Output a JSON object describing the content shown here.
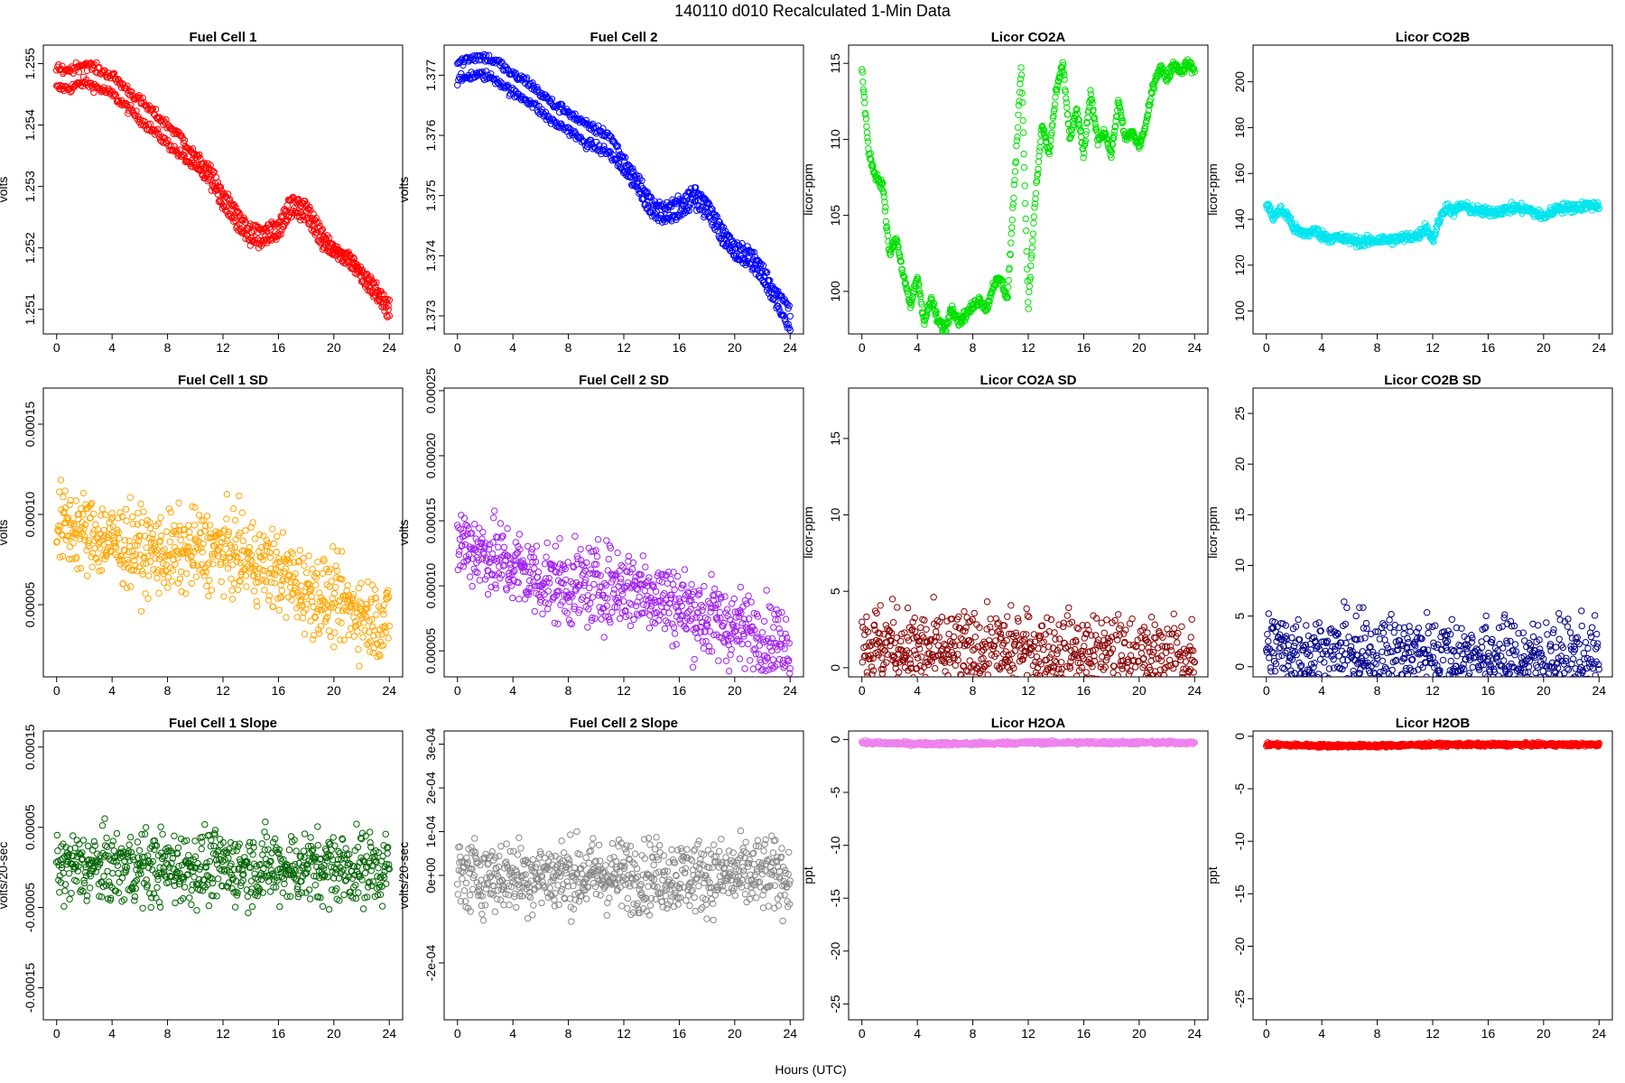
{
  "figure": {
    "title": "140110    d010    Recalculated 1-Min Data",
    "xlabel": "Hours (UTC)"
  },
  "chart_data": [
    {
      "type": "scatter",
      "title": "Fuel Cell 1",
      "ylabel": "volts",
      "color": "#ff0000",
      "xlim": [
        0,
        24
      ],
      "ylim": [
        1.2506,
        1.2553
      ],
      "xticks": [
        "0",
        "4",
        "8",
        "12",
        "16",
        "20",
        "24"
      ],
      "yticks": [
        "1.251",
        "1.252",
        "1.253",
        "1.254",
        "1.255"
      ],
      "y_tick_values": [
        1.251,
        1.252,
        1.253,
        1.254,
        1.255
      ],
      "series": [
        {
          "x": [
            0,
            1,
            2,
            3,
            4,
            5,
            6,
            7,
            8,
            9,
            10,
            11,
            12,
            13,
            14,
            15,
            16,
            17,
            18,
            19,
            20,
            21,
            22,
            23,
            24
          ],
          "values": [
            1.2546,
            1.2546,
            1.2547,
            1.2546,
            1.2545,
            1.2543,
            1.2541,
            1.2539,
            1.2537,
            1.2535,
            1.2533,
            1.2531,
            1.2527,
            1.2524,
            1.2521,
            1.2521,
            1.2522,
            1.2526,
            1.2525,
            1.2521,
            1.2519,
            1.2518,
            1.2515,
            1.2512,
            1.2509
          ]
        },
        {
          "x": [
            0,
            1,
            2,
            3,
            4,
            5,
            6,
            7,
            8,
            9,
            10,
            11,
            12,
            13,
            14,
            15,
            16,
            17,
            18,
            19,
            20,
            21,
            22,
            23,
            24
          ],
          "values": [
            1.2549,
            1.2549,
            1.255,
            1.2549,
            1.2548,
            1.2546,
            1.2544,
            1.2542,
            1.254,
            1.2538,
            1.2535,
            1.2533,
            1.2529,
            1.2526,
            1.2523,
            1.2523,
            1.2524,
            1.2528,
            1.2527,
            1.2523,
            1.252,
            1.2519,
            1.2516,
            1.2514,
            1.2511
          ]
        }
      ]
    },
    {
      "type": "scatter",
      "title": "Fuel Cell 2",
      "ylabel": "volts",
      "color": "#0000ff",
      "xlim": [
        0,
        24
      ],
      "ylim": [
        1.3727,
        1.3775
      ],
      "xticks": [
        "0",
        "4",
        "8",
        "12",
        "16",
        "20",
        "24"
      ],
      "yticks": [
        "1.373",
        "1.374",
        "1.375",
        "1.376",
        "1.377"
      ],
      "y_tick_values": [
        1.373,
        1.374,
        1.375,
        1.376,
        1.377
      ],
      "series": [
        {
          "x": [
            0,
            1,
            2,
            3,
            4,
            5,
            6,
            7,
            8,
            9,
            10,
            11,
            12,
            13,
            14,
            15,
            16,
            17,
            18,
            19,
            20,
            21,
            22,
            23,
            24
          ],
          "values": [
            1.3769,
            1.377,
            1.377,
            1.3769,
            1.3767,
            1.3766,
            1.3764,
            1.3762,
            1.3761,
            1.3759,
            1.3758,
            1.3757,
            1.3754,
            1.3751,
            1.3747,
            1.3746,
            1.3747,
            1.3749,
            1.3747,
            1.3743,
            1.374,
            1.3739,
            1.3736,
            1.3732,
            1.3728
          ]
        },
        {
          "x": [
            0,
            1,
            2,
            3,
            4,
            5,
            6,
            7,
            8,
            9,
            10,
            11,
            12,
            13,
            14,
            15,
            16,
            17,
            18,
            19,
            20,
            21,
            22,
            23,
            24
          ],
          "values": [
            1.3772,
            1.3773,
            1.3773,
            1.3772,
            1.377,
            1.3769,
            1.3767,
            1.3765,
            1.3764,
            1.3762,
            1.3761,
            1.376,
            1.3756,
            1.3753,
            1.3749,
            1.3748,
            1.3749,
            1.3751,
            1.3749,
            1.3745,
            1.3742,
            1.3741,
            1.3738,
            1.3734,
            1.3731
          ]
        }
      ]
    },
    {
      "type": "scatter",
      "title": "Licor CO2A",
      "ylabel": "licor-ppm",
      "color": "#00e000",
      "xlim": [
        0,
        24
      ],
      "ylim": [
        97.2,
        116.2
      ],
      "xticks": [
        "0",
        "4",
        "8",
        "12",
        "16",
        "20",
        "24"
      ],
      "yticks": [
        "100",
        "105",
        "110",
        "115"
      ],
      "y_tick_values": [
        100,
        105,
        110,
        115
      ],
      "series": [
        {
          "x": [
            0,
            0.5,
            1,
            1.5,
            2,
            2.5,
            3,
            3.5,
            4,
            4.5,
            5,
            5.5,
            6,
            6.5,
            7,
            7.5,
            8,
            8.5,
            9,
            9.5,
            10,
            10.5,
            11,
            11.5,
            12,
            12.5,
            13,
            13.5,
            14,
            14.5,
            15,
            15.5,
            16,
            16.5,
            17,
            17.5,
            18,
            18.5,
            19,
            19.5,
            20,
            20.5,
            21,
            21.5,
            22,
            22.5,
            23,
            23.5,
            24
          ],
          "values": [
            114.5,
            109.0,
            107.5,
            107.0,
            102.5,
            103.5,
            101.0,
            99.0,
            101.0,
            98.0,
            99.5,
            98.0,
            97.5,
            99.0,
            98.0,
            98.5,
            99.0,
            99.5,
            98.8,
            100.5,
            100.8,
            99.5,
            107.0,
            115.0,
            99.0,
            106.0,
            111.0,
            109.0,
            113.0,
            115.0,
            110.0,
            112.0,
            109.0,
            113.0,
            110.0,
            110.5,
            109.0,
            112.5,
            110.0,
            110.5,
            109.5,
            111.0,
            113.5,
            114.8,
            114.0,
            115.0,
            114.5,
            115.0,
            114.5
          ]
        }
      ]
    },
    {
      "type": "scatter",
      "title": "Licor CO2B",
      "ylabel": "licor-ppm",
      "color": "#00e5ee",
      "xlim": [
        0,
        24
      ],
      "ylim": [
        90,
        216
      ],
      "xticks": [
        "0",
        "4",
        "8",
        "12",
        "16",
        "20",
        "24"
      ],
      "yticks": [
        "100",
        "120",
        "140",
        "160",
        "180",
        "200"
      ],
      "y_tick_values": [
        100,
        120,
        140,
        160,
        180,
        200
      ],
      "series": [
        {
          "x": [
            0,
            0.5,
            1,
            1.5,
            2,
            2.5,
            3,
            3.5,
            4,
            4.5,
            5,
            6,
            7,
            8,
            9,
            10,
            11,
            11.5,
            12,
            12.5,
            13,
            13.5,
            14,
            15,
            16,
            17,
            18,
            19,
            20,
            21,
            22,
            23,
            24
          ],
          "values": [
            147,
            141,
            144,
            142,
            136,
            134,
            134,
            135,
            133,
            132,
            132,
            131,
            130,
            131,
            131,
            132,
            133,
            137,
            131,
            140,
            146,
            143,
            146,
            144,
            143,
            144,
            145,
            144,
            141,
            145,
            145,
            146,
            146
          ]
        }
      ]
    },
    {
      "type": "scatter",
      "title": "Fuel Cell 1 SD",
      "ylabel": "volts",
      "color": "#ffa500",
      "xlim": [
        0,
        24
      ],
      "ylim": [
        1e-05,
        0.00017
      ],
      "xticks": [
        "0",
        "4",
        "8",
        "12",
        "16",
        "20",
        "24"
      ],
      "yticks": [
        "0.00005",
        "0.00010",
        "0.00015"
      ],
      "y_tick_values": [
        5e-05,
        0.0001,
        0.00015
      ],
      "series": [
        {
          "x": [
            0,
            2,
            4,
            6,
            8,
            10,
            12,
            14,
            16,
            18,
            20,
            22,
            24
          ],
          "values": [
            9.5e-05,
            9e-05,
            8.5e-05,
            8e-05,
            7.8e-05,
            8e-05,
            8e-05,
            7.5e-05,
            6.8e-05,
            5.8e-05,
            5.2e-05,
            4.5e-05,
            4e-05
          ]
        }
      ]
    },
    {
      "type": "scatter",
      "title": "Fuel Cell 2 SD",
      "ylabel": "volts",
      "color": "#a020f0",
      "xlim": [
        0,
        24
      ],
      "ylim": [
        3e-05,
        0.000252
      ],
      "xticks": [
        "0",
        "4",
        "8",
        "12",
        "16",
        "20",
        "24"
      ],
      "yticks": [
        "0.00005",
        "0.00010",
        "0.00015",
        "0.00020",
        "0.00025"
      ],
      "y_tick_values": [
        5e-05,
        0.0001,
        0.00015,
        0.0002,
        0.00025
      ],
      "series": [
        {
          "x": [
            0,
            2,
            4,
            6,
            8,
            10,
            12,
            14,
            16,
            18,
            20,
            22,
            24
          ],
          "values": [
            0.000135,
            0.000125,
            0.000115,
            0.000105,
            0.0001,
            0.0001,
            0.0001,
            9.5e-05,
            8.5e-05,
            7.5e-05,
            6.8e-05,
            6e-05,
            5.5e-05
          ]
        }
      ]
    },
    {
      "type": "scatter",
      "title": "Licor CO2A SD",
      "ylabel": "licor-ppm",
      "color": "#8b0000",
      "xlim": [
        0,
        24
      ],
      "ylim": [
        -0.6,
        18.3
      ],
      "xticks": [
        "0",
        "4",
        "8",
        "12",
        "16",
        "20",
        "24"
      ],
      "yticks": [
        "0",
        "5",
        "10",
        "15"
      ],
      "y_tick_values": [
        0,
        5,
        10,
        15
      ],
      "series": [
        {
          "x": [
            0,
            2,
            4,
            6,
            8,
            10,
            12,
            14,
            16,
            18,
            20,
            22,
            24
          ],
          "values": [
            1.6,
            1.4,
            1.1,
            1.0,
            1.0,
            1.0,
            1.0,
            0.9,
            0.8,
            0.7,
            0.6,
            0.5,
            0.5
          ]
        }
      ]
    },
    {
      "type": "scatter",
      "title": "Licor CO2B SD",
      "ylabel": "licor-ppm",
      "color": "#00008b",
      "xlim": [
        0,
        24
      ],
      "ylim": [
        -1,
        27.5
      ],
      "xticks": [
        "0",
        "4",
        "8",
        "12",
        "16",
        "20",
        "24"
      ],
      "yticks": [
        "0",
        "5",
        "10",
        "15",
        "20",
        "25"
      ],
      "y_tick_values": [
        0,
        5,
        10,
        15,
        20,
        25
      ],
      "series": [
        {
          "x": [
            0,
            2,
            4,
            6,
            8,
            10,
            12,
            14,
            16,
            18,
            20,
            22,
            24
          ],
          "values": [
            1.8,
            1.6,
            1.0,
            1.0,
            1.0,
            1.0,
            1.2,
            1.0,
            0.8,
            0.7,
            0.6,
            0.5,
            0.5
          ]
        }
      ]
    },
    {
      "type": "scatter",
      "title": "Fuel Cell 1 Slope",
      "ylabel": "volts/20-sec",
      "color": "#006400",
      "xlim": [
        0,
        24
      ],
      "ylim": [
        -0.00019,
        0.00017
      ],
      "xticks": [
        "0",
        "4",
        "8",
        "12",
        "16",
        "20",
        "24"
      ],
      "yticks": [
        "-0.00015",
        "-0.00005",
        "0.00005",
        "0.00015"
      ],
      "y_tick_values": [
        -0.00015,
        -5e-05,
        5e-05,
        0.00015
      ],
      "series": [
        {
          "x": [
            0,
            24
          ],
          "values": [
            0,
            0
          ]
        }
      ]
    },
    {
      "type": "scatter",
      "title": "Fuel Cell 2 Slope",
      "ylabel": "volts/20-sec",
      "color": "#888888",
      "xlim": [
        0,
        24
      ],
      "ylim": [
        -0.00033,
        0.00033
      ],
      "xticks": [
        "0",
        "4",
        "8",
        "12",
        "16",
        "20",
        "24"
      ],
      "yticks": [
        "-2e-04",
        "0e+00",
        "1e-04",
        "2e-04",
        "3e-04"
      ],
      "y_tick_values": [
        -0.0002,
        0,
        0.0001,
        0.0002,
        0.0003
      ],
      "series": [
        {
          "x": [
            0,
            24
          ],
          "values": [
            0,
            0
          ]
        }
      ]
    },
    {
      "type": "scatter",
      "title": "Licor H2OA",
      "ylabel": "ppt",
      "color": "#ee82ee",
      "xlim": [
        0,
        24
      ],
      "ylim": [
        -26.5,
        0.8
      ],
      "xticks": [
        "0",
        "4",
        "8",
        "12",
        "16",
        "20",
        "24"
      ],
      "yticks": [
        "0",
        "-5",
        "-10",
        "-15",
        "-20",
        "-25"
      ],
      "y_tick_values": [
        0,
        -5,
        -10,
        -15,
        -20,
        -25
      ],
      "series": [
        {
          "x": [
            0,
            4,
            8,
            12,
            16,
            20,
            24
          ],
          "values": [
            -0.3,
            -0.4,
            -0.4,
            -0.3,
            -0.3,
            -0.3,
            -0.3
          ]
        }
      ]
    },
    {
      "type": "scatter",
      "title": "Licor H2OB",
      "ylabel": "ppt",
      "color": "#ff0000",
      "xlim": [
        0,
        24
      ],
      "ylim": [
        -27,
        0.5
      ],
      "xticks": [
        "0",
        "4",
        "8",
        "12",
        "16",
        "20",
        "24"
      ],
      "yticks": [
        "0",
        "-5",
        "-10",
        "-15",
        "-20",
        "-25"
      ],
      "y_tick_values": [
        0,
        -5,
        -10,
        -15,
        -20,
        -25
      ],
      "series": [
        {
          "x": [
            0,
            4,
            8,
            12,
            16,
            20,
            24
          ],
          "values": [
            -0.8,
            -0.9,
            -0.9,
            -0.8,
            -0.8,
            -0.8,
            -0.8
          ]
        }
      ]
    }
  ]
}
